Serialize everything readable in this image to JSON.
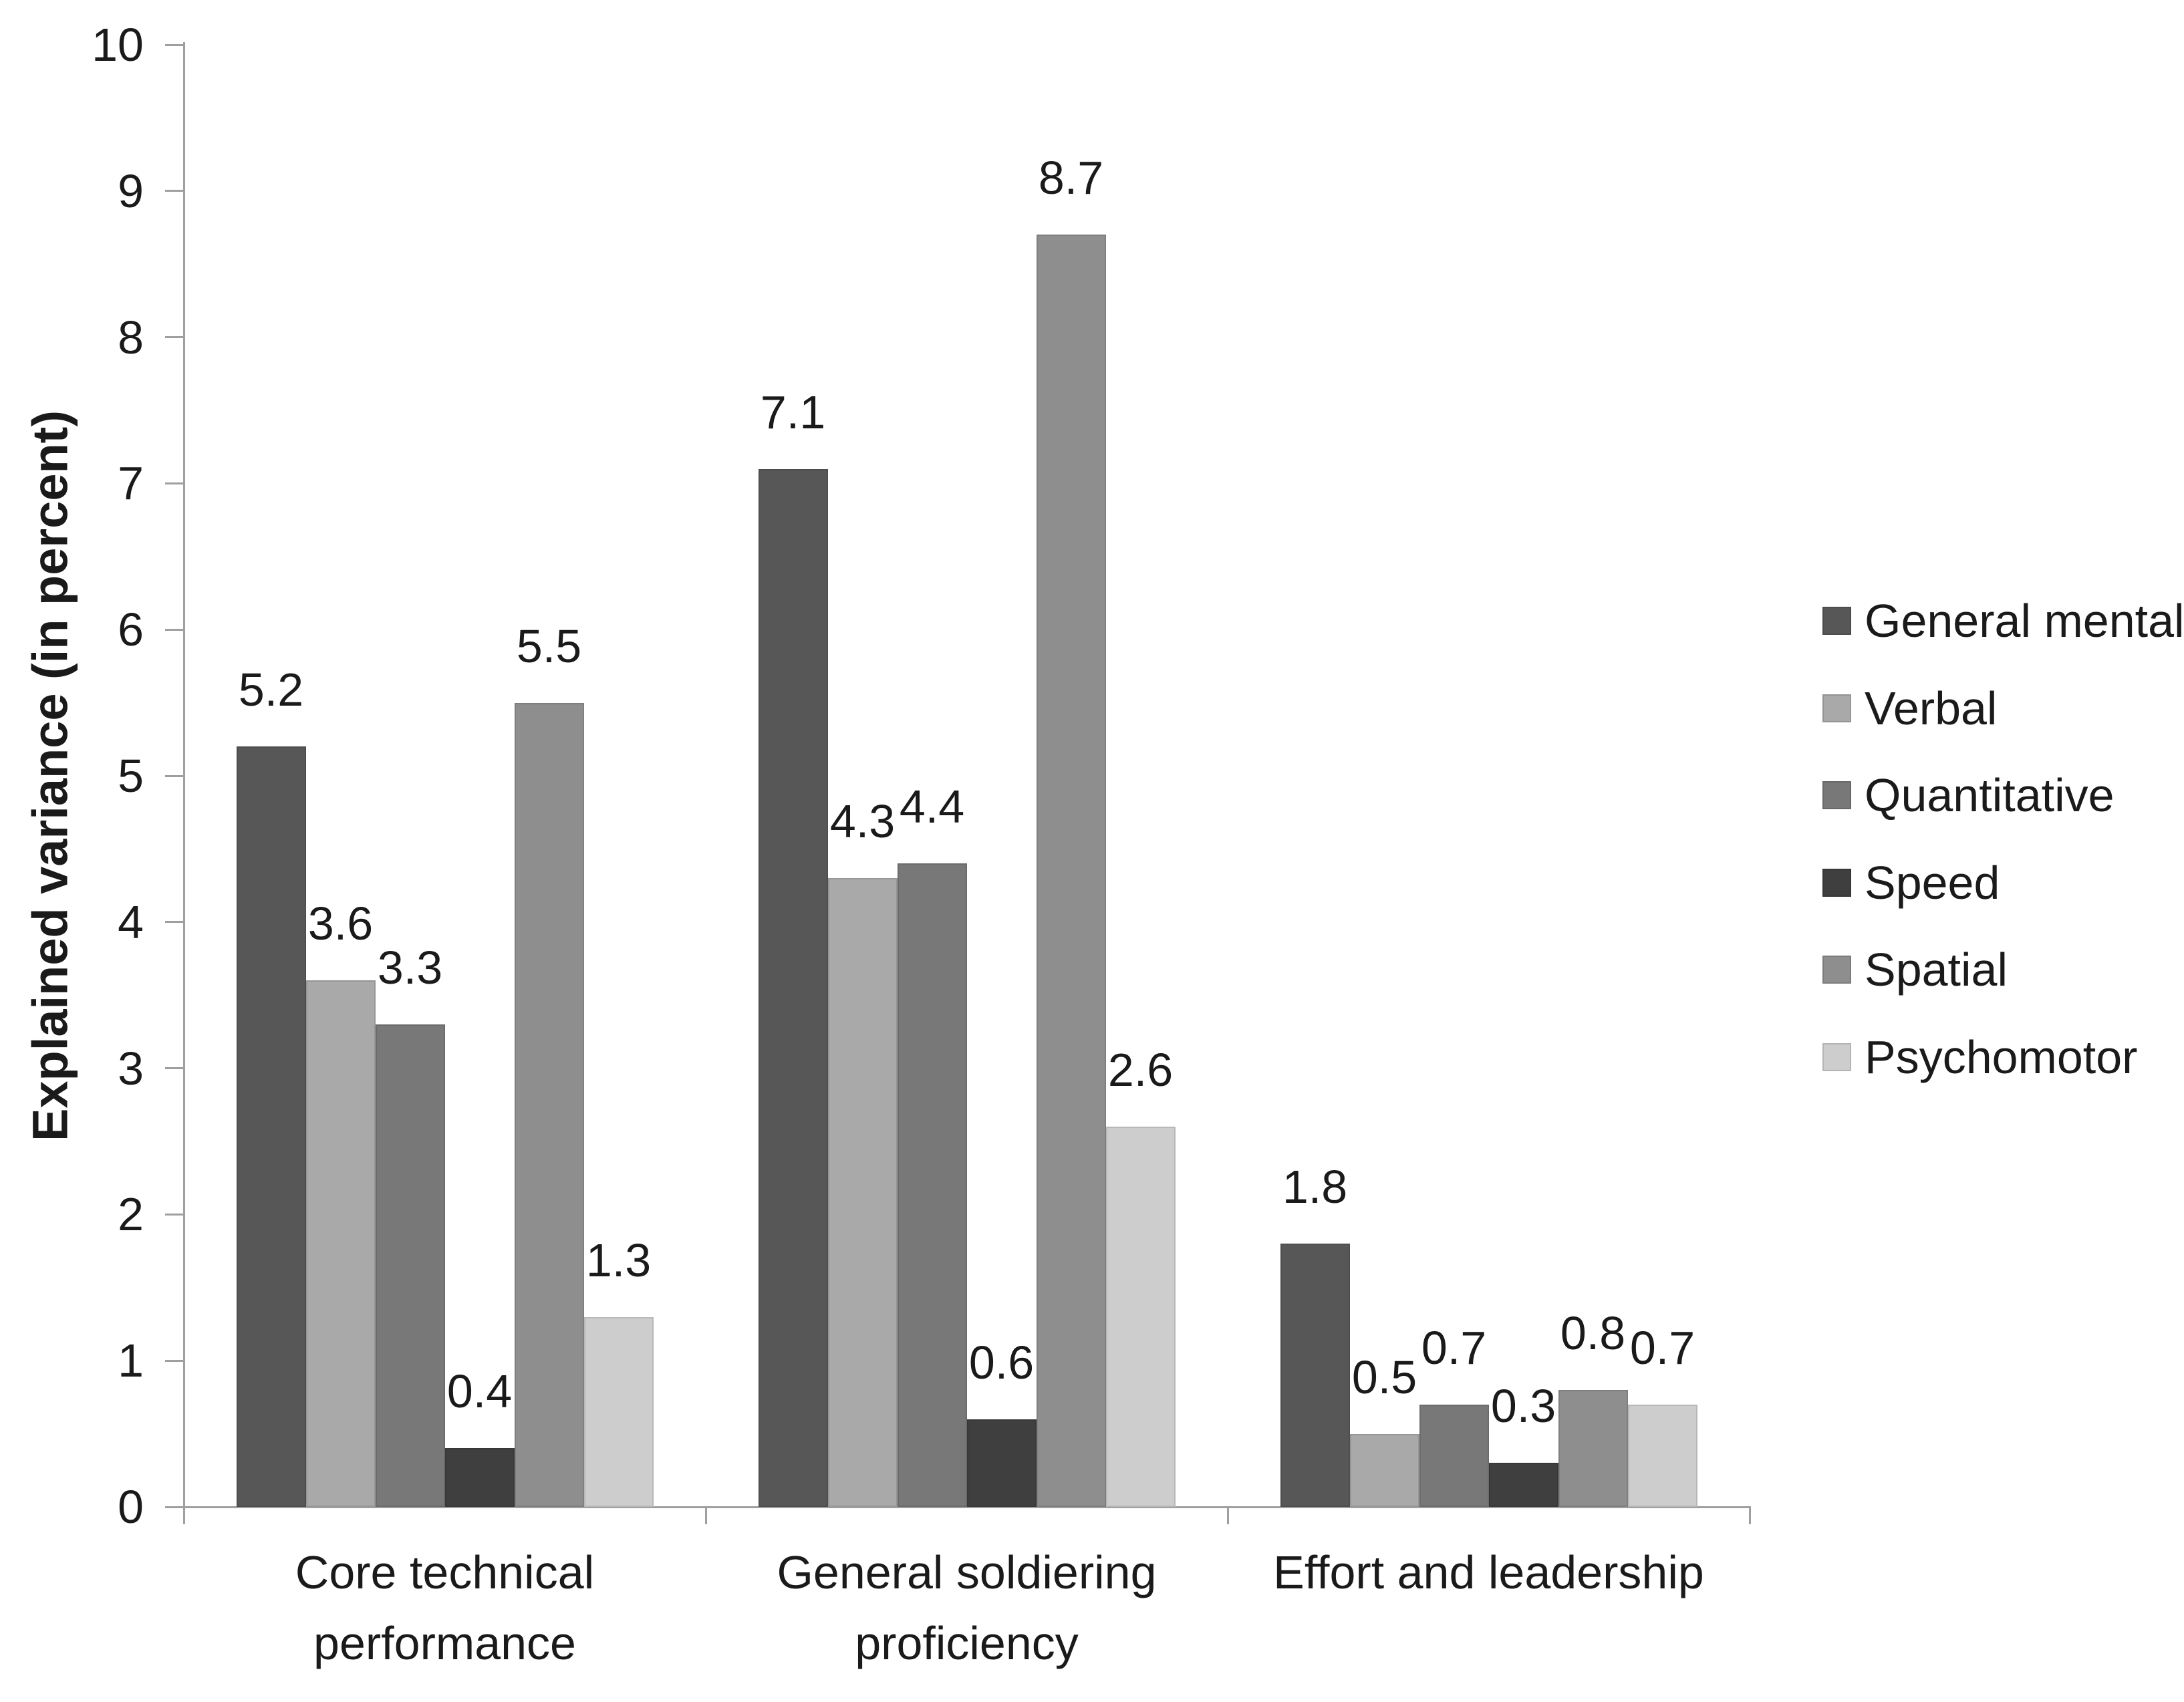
{
  "chart_data": {
    "type": "bar",
    "title": "",
    "ylabel": "Explained variance (in percent)",
    "xlabel": "",
    "ylim": [
      0,
      10
    ],
    "yticks": [
      "0",
      "1",
      "2",
      "3",
      "4",
      "5",
      "6",
      "7",
      "8",
      "9",
      "10"
    ],
    "grid": false,
    "legend_position": "right",
    "background_color": "#ffffff",
    "axis_color": "#9f9f9f",
    "text_color": "#1a1a1a",
    "categories": [
      "Core technical performance",
      "General soldiering proficiency",
      "Effort and leadership"
    ],
    "category_lines": [
      [
        "Core technical",
        "performance"
      ],
      [
        "General soldiering",
        "proficiency"
      ],
      [
        "Effort and leadership"
      ]
    ],
    "series": [
      {
        "name": "General mental",
        "color": "#575757",
        "values": [
          5.2,
          7.1,
          1.8
        ]
      },
      {
        "name": "Verbal",
        "color": "#a9a9a9",
        "values": [
          3.6,
          4.3,
          0.5
        ]
      },
      {
        "name": "Quantitative",
        "color": "#787878",
        "values": [
          3.3,
          4.4,
          0.7
        ]
      },
      {
        "name": "Speed",
        "color": "#3f3f3f",
        "values": [
          0.4,
          0.6,
          0.3
        ]
      },
      {
        "name": "Spatial",
        "color": "#8e8e8e",
        "values": [
          5.5,
          8.7,
          0.8
        ]
      },
      {
        "name": "Psychomotor",
        "color": "#cdcdcd",
        "values": [
          1.3,
          2.6,
          0.7
        ]
      }
    ],
    "value_label_decimals": 1
  }
}
